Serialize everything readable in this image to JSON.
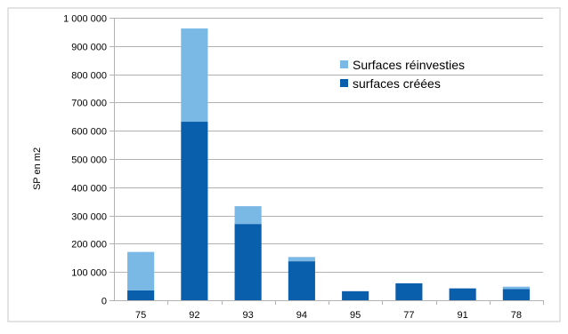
{
  "chart_data": {
    "type": "bar",
    "stacked": true,
    "title": "",
    "xlabel": "",
    "ylabel": "SP en m2",
    "ylim": [
      0,
      1000000
    ],
    "yticks": [
      "0",
      "100 000",
      "200 000",
      "300 000",
      "400 000",
      "500 000",
      "600 000",
      "700 000",
      "800 000",
      "900 000",
      "1 000 000"
    ],
    "categories": [
      "75",
      "92",
      "93",
      "94",
      "95",
      "77",
      "91",
      "78"
    ],
    "series": [
      {
        "name": "surfaces créées",
        "color": "#0a5fad",
        "values": [
          35000,
          632000,
          270000,
          138000,
          32000,
          60000,
          42000,
          40000
        ]
      },
      {
        "name": "Surfaces réinvesties",
        "color": "#7ab8e6",
        "values": [
          136000,
          330000,
          63000,
          15000,
          0,
          0,
          0,
          8000
        ]
      }
    ],
    "legend": {
      "position": "top-right",
      "order": [
        "Surfaces réinvesties",
        "surfaces créées"
      ]
    },
    "grid": true
  }
}
